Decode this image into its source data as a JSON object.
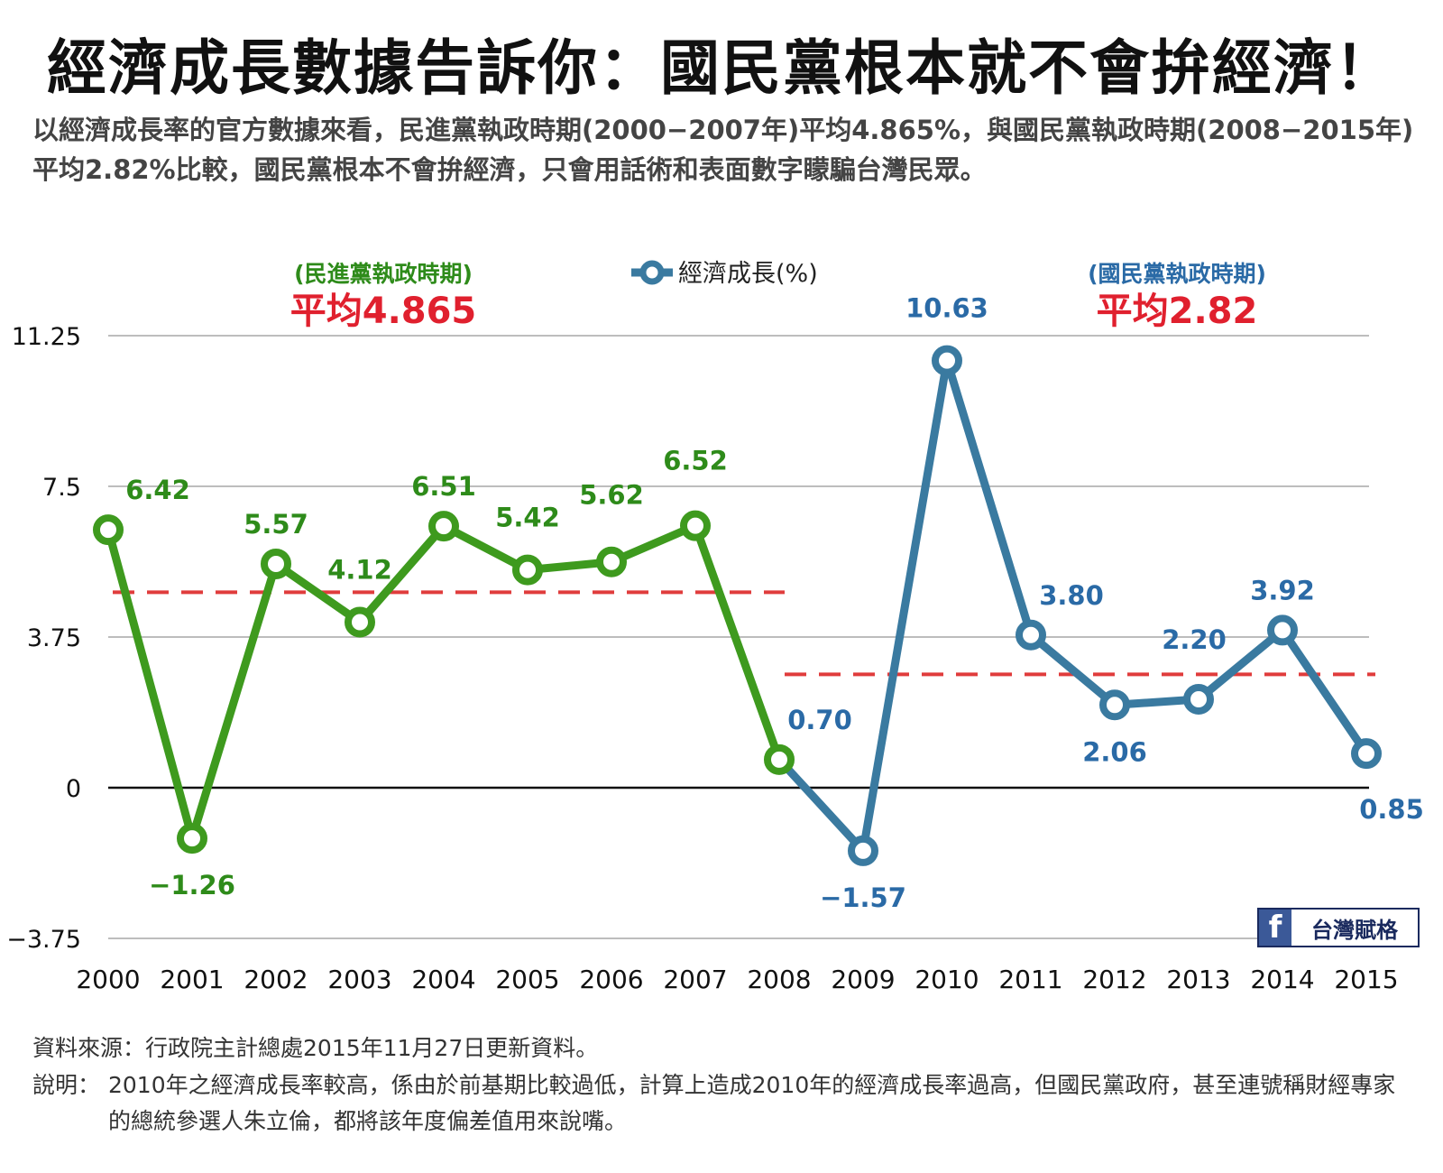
{
  "header": {
    "title": "經濟成長數據告訴你：國民黨根本就不會拚經濟！",
    "subtitle": "以經濟成長率的官方數據來看，民進黨執政時期(2000−2007年)平均4.865%，與國民黨執政時期(2008−2015年)平均2.82%比較，國民黨根本不會拚經濟，只會用話術和表面數字矇騙台灣民眾。"
  },
  "annotations": {
    "dpp_period": "(民進黨執政時期)",
    "dpp_avg": "平均4.865",
    "kmt_period": "(國民黨執政時期)",
    "kmt_avg": "平均2.82"
  },
  "colors": {
    "dpp_green": "#3e9a1e",
    "dpp_label_green": "#2e8b1a",
    "kmt_blue": "#3a7aa0",
    "kmt_label_blue": "#2a6aa6",
    "avg_red": "#e03c3c",
    "avg_text_red": "#e0202e"
  },
  "chart_data": {
    "type": "line",
    "legend": "經濟成長(%)",
    "legend_placement": "top-center",
    "x": [
      "2000",
      "2001",
      "2002",
      "2003",
      "2004",
      "2005",
      "2006",
      "2007",
      "2008",
      "2009",
      "2010",
      "2011",
      "2012",
      "2013",
      "2014",
      "2015"
    ],
    "series": [
      {
        "name": "經濟成長(%)",
        "values": [
          6.42,
          -1.26,
          5.57,
          4.12,
          6.51,
          5.42,
          5.62,
          6.52,
          0.7,
          -1.57,
          10.63,
          3.8,
          2.06,
          2.2,
          3.92,
          0.85
        ]
      }
    ],
    "data_labels": [
      "6.42",
      "−1.26",
      "5.57",
      "4.12",
      "6.51",
      "5.42",
      "5.62",
      "6.52",
      "0.70",
      "−1.57",
      "10.63",
      "3.80",
      "2.06",
      "2.20",
      "3.92",
      "0.85"
    ],
    "y_ticks": [
      "11.25",
      "7.5",
      "3.75",
      "0",
      "−3.75"
    ],
    "y_tick_values": [
      11.25,
      7.5,
      3.75,
      0,
      -3.75
    ],
    "ylim": [
      -3.75,
      11.25
    ],
    "grid": true,
    "averages": [
      {
        "period": "2000-2007",
        "value": 4.865
      },
      {
        "period": "2008-2015",
        "value": 2.82
      }
    ]
  },
  "source": {
    "badge": "台灣賦格",
    "badge_icon": "facebook-icon",
    "note1": "資料來源：行政院主計總處2015年11月27日更新資料。",
    "note2_label": "說明：",
    "note2_text": "2010年之經濟成長率較高，係由於前基期比較過低，計算上造成2010年的經濟成長率過高，但國民黨政府，甚至連號稱財經專家的總統參選人朱立倫，都將該年度偏差值用來說嘴。"
  }
}
